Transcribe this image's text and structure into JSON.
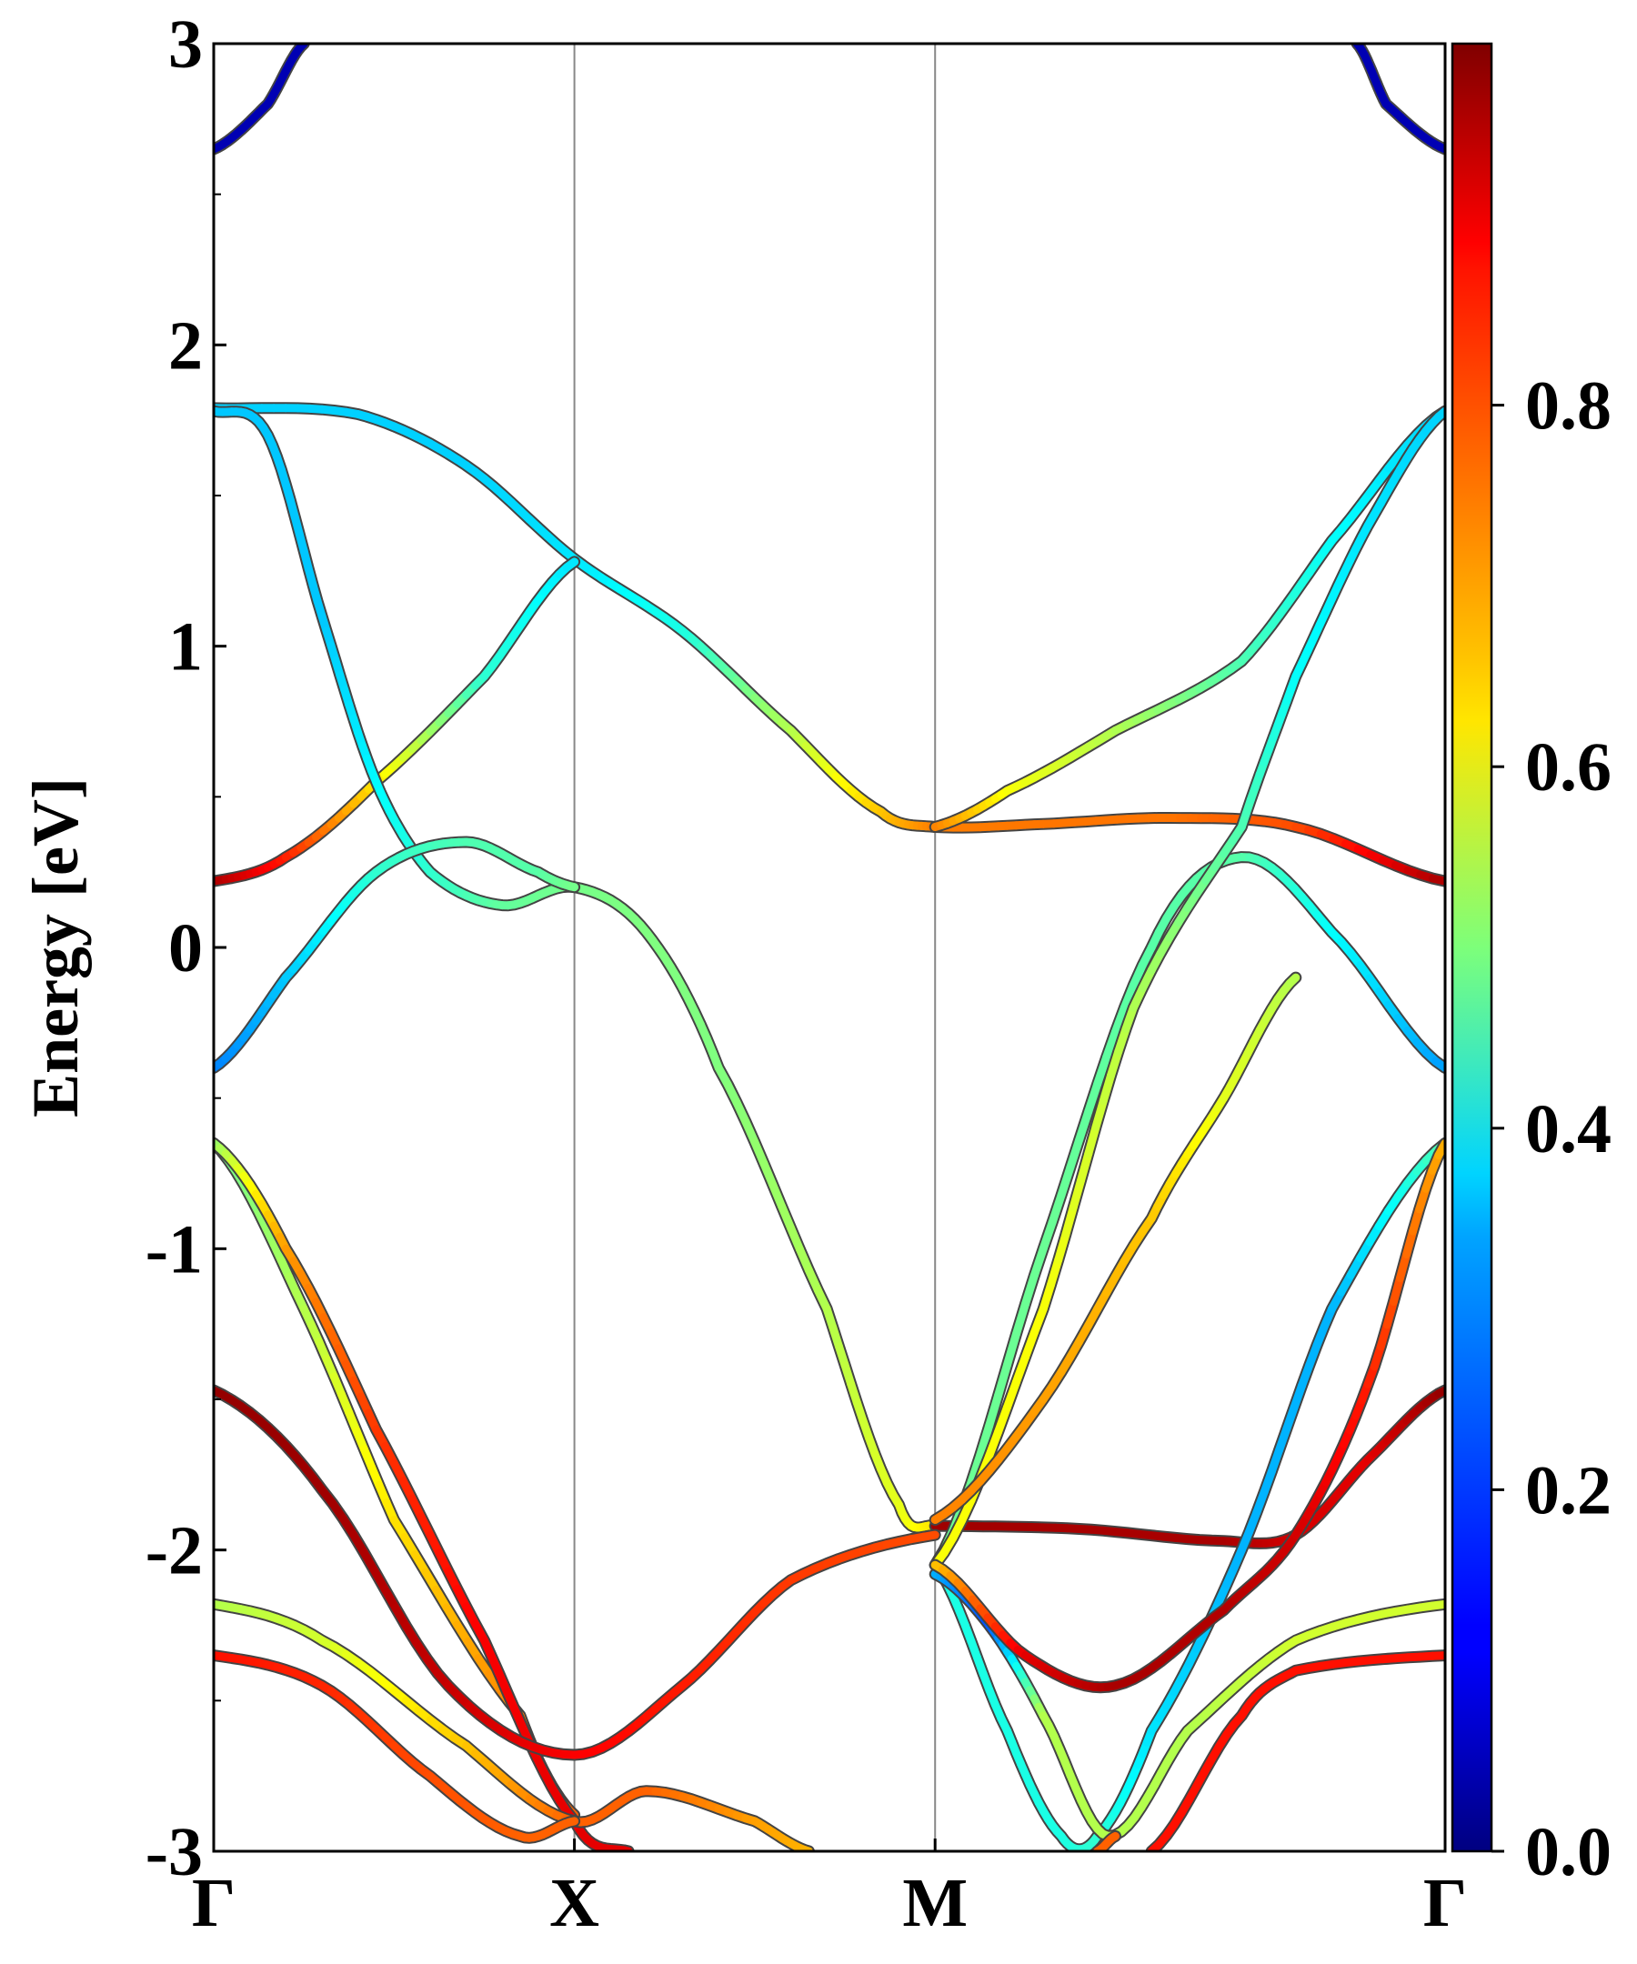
{
  "chart_data": {
    "type": "line",
    "title": "",
    "xlabel": "",
    "ylabel": "Energy [eV]",
    "ylim": [
      -3,
      3
    ],
    "x_ticks": [
      {
        "label": "Γ",
        "x": 0
      },
      {
        "label": "X",
        "x": 1
      },
      {
        "label": "M",
        "x": 2
      },
      {
        "label": "Γ",
        "x": 3.414
      }
    ],
    "y_ticks": [
      "3",
      "2",
      "1",
      "0",
      "-1",
      "-2",
      "-3"
    ],
    "y_tick_values": [
      3,
      2,
      1,
      0,
      -1,
      -2,
      -3
    ],
    "colorbar": {
      "colormap": "jet",
      "range": [
        0.0,
        1.0
      ],
      "tick_values": [
        0.0,
        0.2,
        0.4,
        0.6,
        0.8
      ],
      "tick_labels": [
        "0.0",
        "0.2",
        "0.4",
        "0.6",
        "0.8"
      ]
    },
    "series": [
      {
        "values": [
          [
            0,
            2.65,
            0.05
          ],
          [
            0.15,
            2.8,
            0.05
          ],
          [
            0.25,
            3.0,
            0.05
          ]
        ]
      },
      {
        "values": [
          [
            3.414,
            2.65,
            0.05
          ],
          [
            3.25,
            2.8,
            0.05
          ],
          [
            3.17,
            3.0,
            0.05
          ]
        ]
      },
      {
        "values": [
          [
            0,
            1.79,
            0.33
          ],
          [
            0.4,
            1.77,
            0.33
          ],
          [
            0.7,
            1.6,
            0.33
          ],
          [
            1.0,
            1.29,
            0.35
          ],
          [
            1.3,
            1.05,
            0.4
          ],
          [
            1.6,
            0.72,
            0.55
          ],
          [
            1.85,
            0.45,
            0.68
          ],
          [
            2.0,
            0.4,
            0.75
          ],
          [
            2.3,
            0.41,
            0.76
          ],
          [
            2.65,
            0.43,
            0.76
          ],
          [
            3.0,
            0.4,
            0.8
          ],
          [
            3.414,
            0.22,
            0.96
          ]
        ]
      },
      {
        "values": [
          [
            0,
            0.22,
            0.96
          ],
          [
            0.2,
            0.3,
            0.85
          ],
          [
            0.45,
            0.55,
            0.65
          ],
          [
            0.75,
            0.9,
            0.42
          ],
          [
            1.0,
            1.28,
            0.35
          ]
        ]
      },
      {
        "values": [
          [
            0,
            1.78,
            0.32
          ],
          [
            0.15,
            1.7,
            0.32
          ],
          [
            0.3,
            1.1,
            0.32
          ],
          [
            0.45,
            0.55,
            0.37
          ],
          [
            0.6,
            0.25,
            0.42
          ],
          [
            0.8,
            0.14,
            0.47
          ],
          [
            1.0,
            0.2,
            0.49
          ],
          [
            1.2,
            0.05,
            0.5
          ],
          [
            1.4,
            -0.4,
            0.5
          ],
          [
            1.7,
            -1.2,
            0.55
          ],
          [
            1.9,
            -1.85,
            0.6
          ],
          [
            2.0,
            -1.92,
            0.65
          ]
        ]
      },
      {
        "values": [
          [
            0,
            -0.4,
            0.25
          ],
          [
            0.2,
            -0.1,
            0.32
          ],
          [
            0.45,
            0.25,
            0.42
          ],
          [
            0.7,
            0.35,
            0.45
          ],
          [
            0.9,
            0.25,
            0.46
          ],
          [
            1.0,
            0.2,
            0.49
          ]
        ]
      },
      {
        "values": [
          [
            2.0,
            -1.92,
            0.97
          ],
          [
            2.4,
            -1.93,
            0.96
          ],
          [
            2.8,
            -1.97,
            0.96
          ],
          [
            3.0,
            -1.95,
            0.92
          ],
          [
            3.2,
            -1.7,
            0.9
          ],
          [
            3.414,
            -1.47,
            0.98
          ]
        ]
      },
      {
        "values": [
          [
            2.0,
            0.4,
            0.75
          ],
          [
            2.2,
            0.52,
            0.62
          ],
          [
            2.5,
            0.72,
            0.55
          ],
          [
            2.85,
            0.95,
            0.45
          ],
          [
            3.1,
            1.35,
            0.38
          ],
          [
            3.414,
            1.78,
            0.33
          ]
        ]
      },
      {
        "values": [
          [
            2.0,
            -2.05,
            0.48
          ],
          [
            2.3,
            -1.0,
            0.48
          ],
          [
            2.6,
            0.0,
            0.46
          ],
          [
            2.85,
            0.3,
            0.46
          ],
          [
            3.1,
            0.05,
            0.38
          ],
          [
            3.414,
            -0.4,
            0.28
          ]
        ]
      },
      {
        "values": [
          [
            2.0,
            -2.05,
            0.62
          ],
          [
            2.3,
            -1.2,
            0.62
          ],
          [
            2.55,
            -0.2,
            0.55
          ],
          [
            2.85,
            0.4,
            0.45
          ],
          [
            3.0,
            0.9,
            0.38
          ],
          [
            3.2,
            1.4,
            0.35
          ],
          [
            3.414,
            1.78,
            0.33
          ]
        ]
      },
      {
        "values": [
          [
            2.0,
            -1.9,
            0.75
          ],
          [
            2.3,
            -1.5,
            0.72
          ],
          [
            2.6,
            -0.9,
            0.68
          ],
          [
            2.8,
            -0.5,
            0.6
          ],
          [
            3.0,
            -0.1,
            0.55
          ]
        ]
      },
      {
        "values": [
          [
            0,
            -0.65,
            0.48
          ],
          [
            0.25,
            -1.2,
            0.55
          ],
          [
            0.5,
            -1.9,
            0.65
          ],
          [
            0.85,
            -2.55,
            0.75
          ],
          [
            1.0,
            -2.88,
            0.78
          ]
        ]
      },
      {
        "values": [
          [
            0,
            -0.65,
            0.52
          ],
          [
            0.2,
            -1.0,
            0.72
          ],
          [
            0.45,
            -1.6,
            0.82
          ],
          [
            0.75,
            -2.3,
            0.88
          ],
          [
            1.0,
            -2.9,
            0.9
          ],
          [
            1.15,
            -3.0,
            0.9
          ]
        ]
      },
      {
        "values": [
          [
            0,
            -1.47,
            0.98
          ],
          [
            0.3,
            -1.8,
            0.97
          ],
          [
            0.65,
            -2.45,
            0.93
          ],
          [
            1.0,
            -2.68,
            0.88
          ],
          [
            1.3,
            -2.45,
            0.85
          ],
          [
            1.6,
            -2.1,
            0.82
          ],
          [
            2.0,
            -1.95,
            0.8
          ]
        ]
      },
      {
        "values": [
          [
            0,
            -2.18,
            0.55
          ],
          [
            0.3,
            -2.3,
            0.58
          ],
          [
            0.7,
            -2.65,
            0.68
          ],
          [
            1.0,
            -2.9,
            0.78
          ],
          [
            1.2,
            -2.8,
            0.78
          ],
          [
            1.5,
            -2.9,
            0.72
          ],
          [
            1.65,
            -3.0,
            0.7
          ]
        ]
      },
      {
        "values": [
          [
            0,
            -2.35,
            0.86
          ],
          [
            0.3,
            -2.45,
            0.84
          ],
          [
            0.6,
            -2.75,
            0.8
          ],
          [
            0.85,
            -2.95,
            0.78
          ],
          [
            1.0,
            -2.9,
            0.78
          ]
        ]
      },
      {
        "values": [
          [
            2.0,
            -2.05,
            0.4
          ],
          [
            2.2,
            -2.6,
            0.4
          ],
          [
            2.35,
            -2.95,
            0.4
          ],
          [
            2.45,
            -2.95,
            0.42
          ],
          [
            2.6,
            -2.6,
            0.35
          ],
          [
            2.85,
            -2.0,
            0.3
          ],
          [
            3.1,
            -1.2,
            0.3
          ],
          [
            3.414,
            -0.65,
            0.45
          ]
        ]
      },
      {
        "values": [
          [
            2.0,
            -2.08,
            0.3
          ],
          [
            2.15,
            -2.25,
            0.2
          ],
          [
            2.3,
            -2.55,
            0.55
          ],
          [
            2.48,
            -2.95,
            0.55
          ],
          [
            2.7,
            -2.6,
            0.55
          ],
          [
            3.0,
            -2.3,
            0.58
          ],
          [
            3.414,
            -2.18,
            0.58
          ]
        ]
      },
      {
        "values": [
          [
            2.0,
            -2.05,
            0.68
          ],
          [
            2.25,
            -2.35,
            0.9
          ],
          [
            2.5,
            -2.45,
            0.96
          ],
          [
            2.8,
            -2.2,
            0.95
          ],
          [
            3.0,
            -1.95,
            0.92
          ],
          [
            3.2,
            -1.45,
            0.85
          ],
          [
            3.414,
            -0.65,
            0.7
          ]
        ]
      },
      {
        "values": [
          [
            2.6,
            -3.0,
            0.86
          ],
          [
            2.85,
            -2.55,
            0.86
          ],
          [
            3.0,
            -2.4,
            0.86
          ],
          [
            3.414,
            -2.35,
            0.86
          ]
        ]
      },
      {
        "values": [
          [
            2.45,
            -3.0,
            0.78
          ],
          [
            2.5,
            -2.95,
            0.78
          ]
        ]
      }
    ]
  }
}
